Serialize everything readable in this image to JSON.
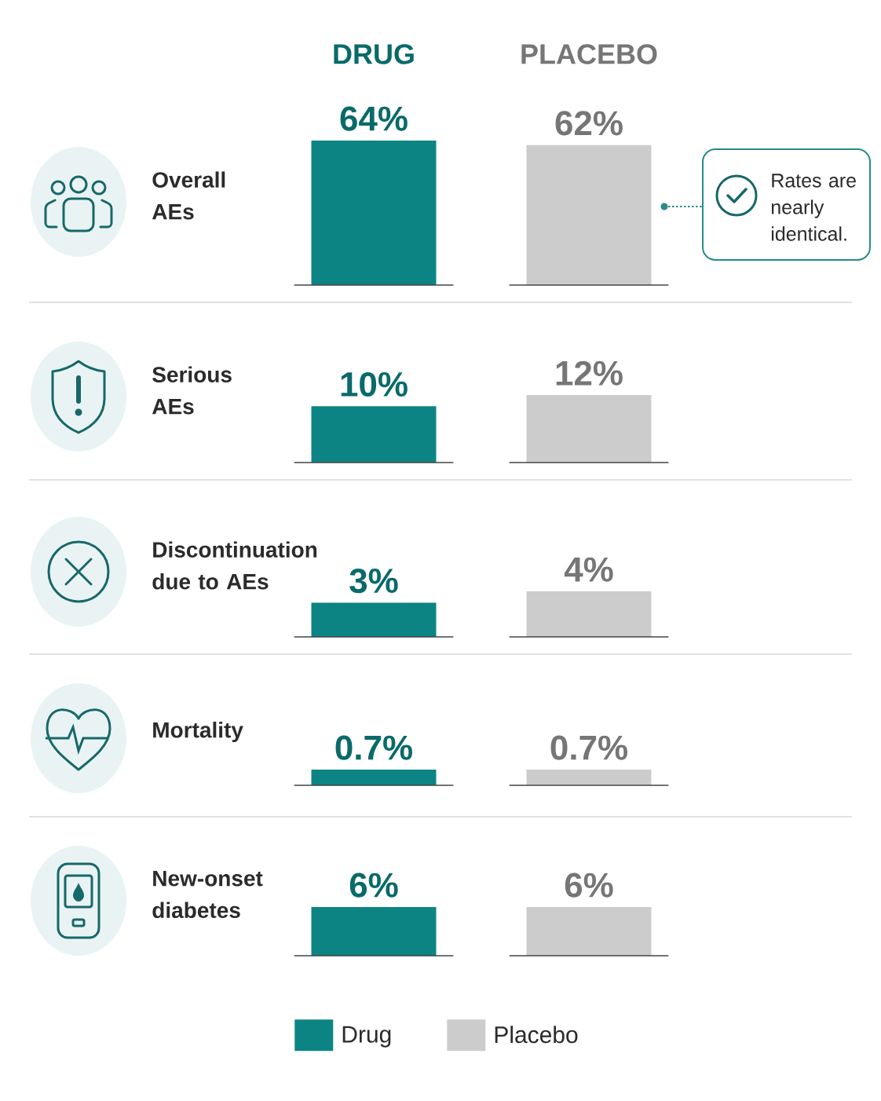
{
  "chart_data": [
    {
      "type": "bar",
      "title": "Overall AEs",
      "categories": [
        "DRUG",
        "PLACEBO"
      ],
      "series": [
        {
          "color": "#0c8484",
          "values": [
            64,
            null
          ],
          "value_labels": [
            "64%",
            null
          ]
        },
        {
          "color": "#cccccc",
          "values": [
            null,
            62
          ],
          "value_labels": [
            null,
            "62%"
          ]
        }
      ],
      "annotations": [
        "Rates are nearly identical."
      ]
    },
    {
      "type": "bar",
      "title": "Serious AEs",
      "categories": [
        null,
        null
      ],
      "series": [
        {
          "color": "#0c8484",
          "values": [
            10,
            null
          ],
          "value_labels": [
            "10%",
            null
          ]
        },
        {
          "color": "#cccccc",
          "values": [
            null,
            12
          ],
          "value_labels": [
            null,
            "12%"
          ]
        }
      ]
    },
    {
      "type": "bar",
      "title": "Discontinuation due to AEs",
      "categories": [
        null,
        null
      ],
      "series": [
        {
          "color": "#0c8484",
          "values": [
            3,
            null
          ],
          "value_labels": [
            "3%",
            null
          ]
        },
        {
          "color": "#cccccc",
          "values": [
            null,
            4
          ],
          "value_labels": [
            null,
            "4%"
          ]
        }
      ]
    },
    {
      "type": "bar",
      "title": "Mortality",
      "categories": [
        null,
        null
      ],
      "series": [
        {
          "color": "#0c8484",
          "values": [
            0.7,
            null
          ],
          "value_labels": [
            "0.7%",
            null
          ]
        },
        {
          "color": "#cccccc",
          "values": [
            null,
            0.7
          ],
          "value_labels": [
            null,
            "0.7%"
          ]
        }
      ]
    },
    {
      "type": "bar",
      "title": "New-onset diabetes",
      "categories": [
        null,
        null
      ],
      "series": [
        {
          "name": "Drug",
          "color": "#0c8484",
          "values": [
            6,
            null
          ],
          "value_labels": [
            "6%",
            null
          ]
        },
        {
          "name": "Placebo",
          "color": "#cccccc",
          "values": [
            null,
            6
          ],
          "value_labels": [
            null,
            "6%"
          ]
        }
      ],
      "legend": "bottom"
    }
  ]
}
